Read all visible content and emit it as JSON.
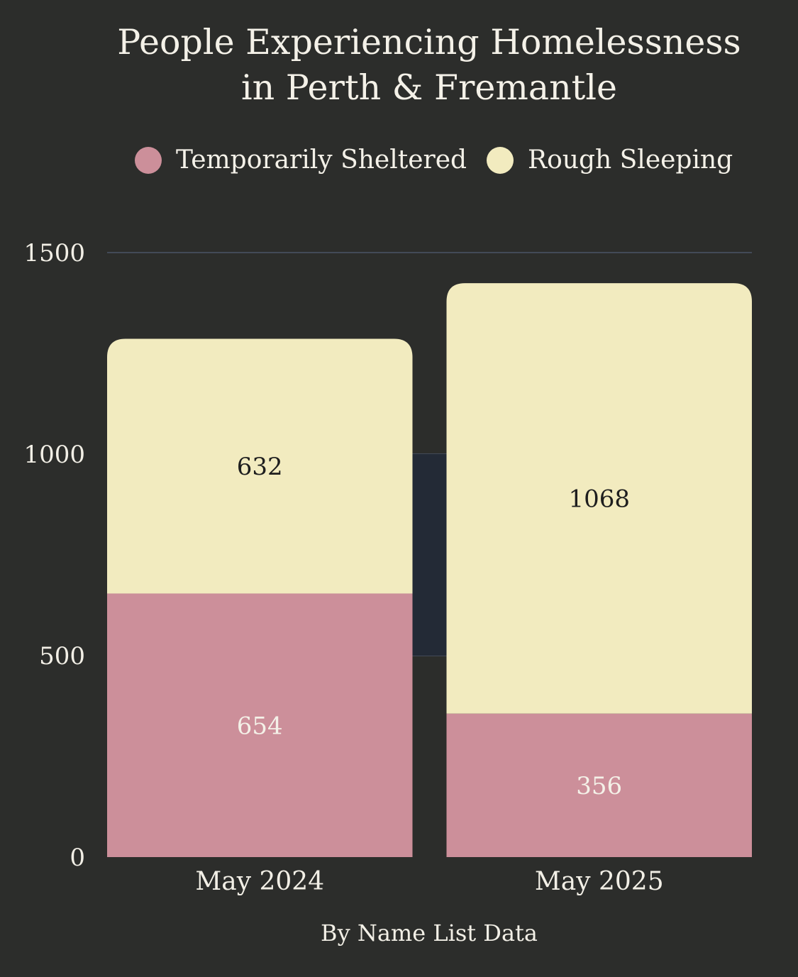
{
  "chart_data": {
    "type": "bar",
    "stacked": true,
    "title": [
      "People Experiencing Homelessness",
      "in Perth & Fremantle"
    ],
    "caption": "By Name List Data",
    "categories": [
      "May 2024",
      "May 2025"
    ],
    "series": [
      {
        "name": "Temporarily Sheltered",
        "values": [
          654,
          356
        ],
        "color": "#cc8f9a",
        "label_color": "#f4f1e8"
      },
      {
        "name": "Rough Sleeping",
        "values": [
          632,
          1068
        ],
        "color": "#f2ebbf",
        "label_color": "#1e1e1e"
      }
    ],
    "y_ticks": [
      "0",
      "500",
      "1000",
      "1500"
    ],
    "ylim": [
      0,
      1500
    ],
    "grid": true,
    "legend_position": "top"
  }
}
